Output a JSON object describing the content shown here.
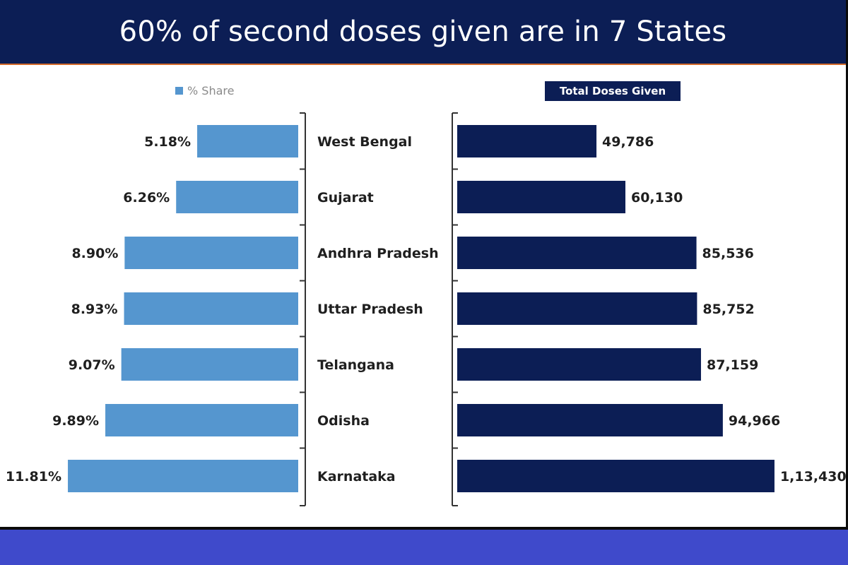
{
  "title": "60% of second doses given are in 7 States",
  "colors": {
    "title_bg": "#0c1e55",
    "title_rule": "#d46b2a",
    "share_bar": "#5596cf",
    "doses_bar": "#0c1e55",
    "footer_band": "#3f4acb"
  },
  "chart_data": {
    "type": "bar",
    "orientation": "horizontal",
    "title": "60% of second doses given are in 7 States",
    "categories": [
      "West Bengal",
      "Gujarat",
      "Andhra Pradesh",
      "Uttar Pradesh",
      "Telangana",
      "Odisha",
      "Karnataka"
    ],
    "series": [
      {
        "name": "% Share",
        "values": [
          5.18,
          6.26,
          8.9,
          8.93,
          9.07,
          9.89,
          11.81
        ],
        "labels": [
          "5.18%",
          "6.26%",
          "8.90%",
          "8.93%",
          "9.07%",
          "9.89%",
          "11.81%"
        ],
        "direction": "leftward"
      },
      {
        "name": "Total Doses Given",
        "values": [
          49786,
          60130,
          85536,
          85752,
          87159,
          94966,
          113430
        ],
        "labels": [
          "49,786",
          "60,130",
          "85,536",
          "85,752",
          "87,159",
          "94,966",
          "1,13,430"
        ],
        "direction": "rightward"
      }
    ],
    "legend": [
      "% Share",
      "Total Doses Given"
    ]
  }
}
